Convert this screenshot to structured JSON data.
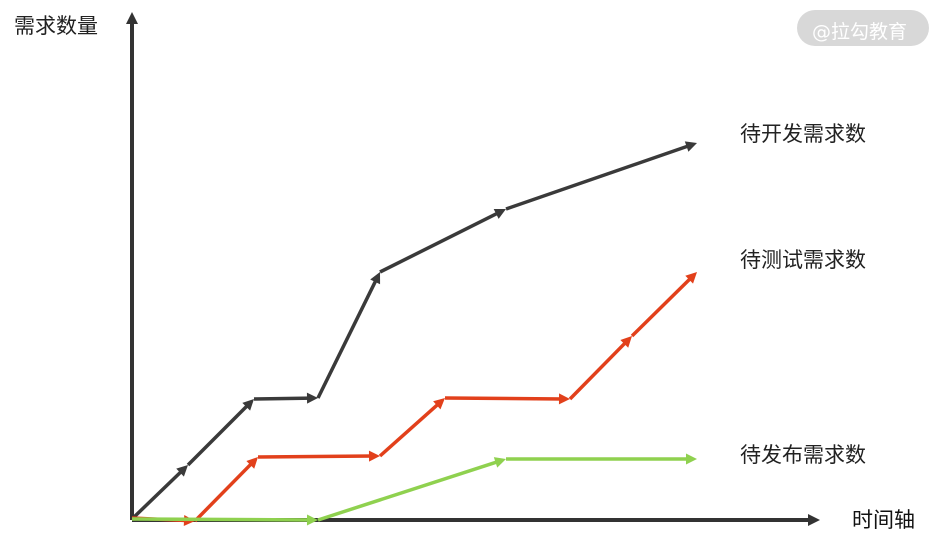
{
  "axes": {
    "y_label": "需求数量",
    "x_label": "时间轴"
  },
  "series": [
    {
      "label": "待开发需求数",
      "color": "#3a3a3a"
    },
    {
      "label": "待测试需求数",
      "color": "#e2401b"
    },
    {
      "label": "待发布需求数",
      "color": "#8fd14f"
    }
  ],
  "watermark": "@拉勾教育"
}
